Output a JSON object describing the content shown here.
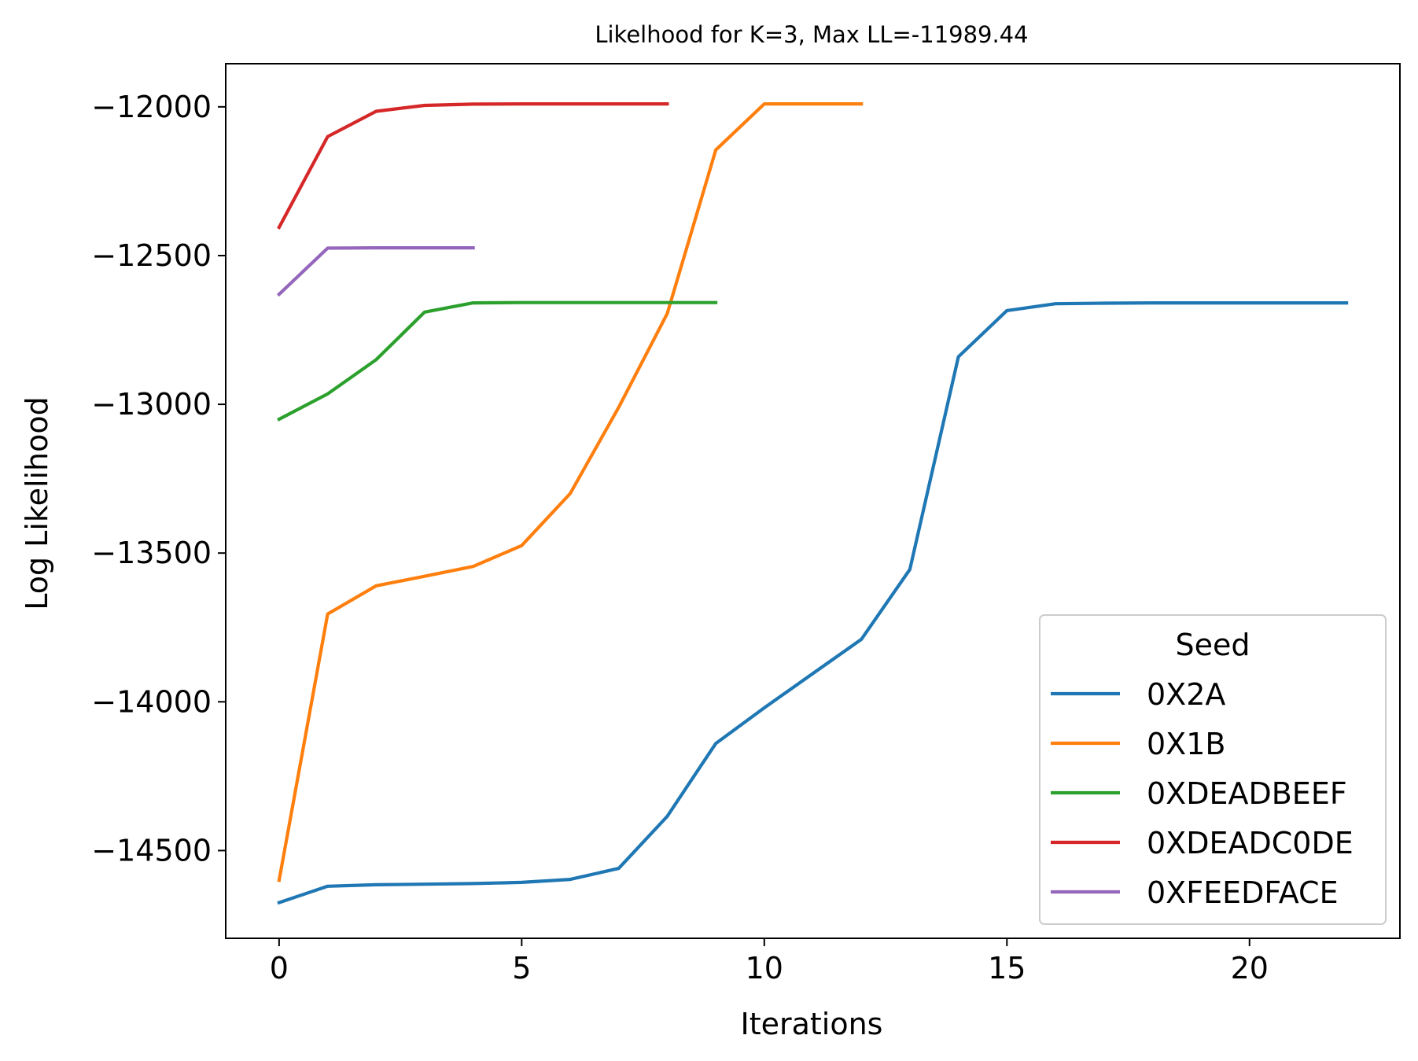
{
  "chart_data": {
    "type": "line",
    "title": "Likelhood for K=3,  Max LL=-11989.44",
    "xlabel": "Iterations",
    "ylabel": "Log Likelihood",
    "xlim": [
      -1.1,
      23.1
    ],
    "ylim": [
      -14795,
      -11855
    ],
    "xticks": [
      0,
      5,
      10,
      15,
      20
    ],
    "xtick_labels": [
      "0",
      "5",
      "10",
      "15",
      "20"
    ],
    "yticks": [
      -12000,
      -12500,
      -13000,
      -13500,
      -14000,
      -14500
    ],
    "ytick_labels": [
      "−12000",
      "−12500",
      "−13000",
      "−13500",
      "−14000",
      "−14500"
    ],
    "grid": false,
    "legend": {
      "title": "Seed",
      "position": "lower right"
    },
    "series": [
      {
        "name": "0X2A",
        "color": "#1f77b4",
        "x": [
          0,
          1,
          2,
          3,
          4,
          5,
          6,
          7,
          8,
          9,
          10,
          11,
          12,
          13,
          14,
          15,
          16,
          17,
          18,
          19,
          20,
          21,
          22
        ],
        "y": [
          -14675,
          -14620,
          -14615,
          -14613,
          -14611,
          -14607,
          -14597,
          -14560,
          -14385,
          -14140,
          -14020,
          -13905,
          -13790,
          -13555,
          -12840,
          -12685,
          -12662,
          -12660,
          -12659,
          -12659,
          -12659,
          -12659,
          -12659
        ]
      },
      {
        "name": "0X1B",
        "color": "#ff7f0e",
        "x": [
          0,
          1,
          2,
          3,
          4,
          5,
          6,
          7,
          8,
          9,
          10,
          11,
          12
        ],
        "y": [
          -14600,
          -13705,
          -13610,
          -13578,
          -13545,
          -13475,
          -13300,
          -13010,
          -12695,
          -12145,
          -11990,
          -11990,
          -11990
        ]
      },
      {
        "name": "0XDEADBEEF",
        "color": "#2ca02c",
        "x": [
          0,
          1,
          2,
          3,
          4,
          5,
          6,
          7,
          8,
          9
        ],
        "y": [
          -13050,
          -12965,
          -12850,
          -12690,
          -12659,
          -12658,
          -12658,
          -12658,
          -12658,
          -12658
        ]
      },
      {
        "name": "0XDEADC0DE",
        "color": "#d62728",
        "x": [
          0,
          1,
          2,
          3,
          4,
          5,
          6,
          7,
          8
        ],
        "y": [
          -12405,
          -12100,
          -12015,
          -11995,
          -11991,
          -11990,
          -11990,
          -11990,
          -11990
        ]
      },
      {
        "name": "0XFEEDFACE",
        "color": "#9467bd",
        "x": [
          0,
          1,
          2,
          3,
          4
        ],
        "y": [
          -12630,
          -12475,
          -12474,
          -12474,
          -12474
        ]
      }
    ]
  }
}
